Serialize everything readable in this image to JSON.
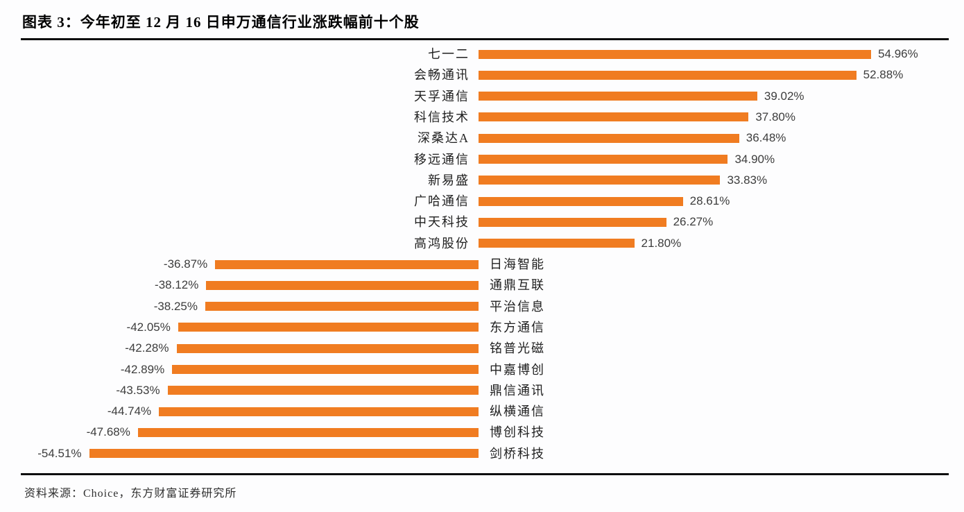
{
  "header": {
    "title": "图表 3：今年初至 12 月 16 日申万通信行业涨跌幅前十个股"
  },
  "footer": {
    "source": "资料来源：Choice，东方财富证券研究所"
  },
  "colors": {
    "bar": "#F07C21",
    "rule": "#0d0d0d",
    "category_label": "#1f1f1f",
    "value_label": "#3d3d3d",
    "background": "#fdfdfe"
  },
  "chart_data": {
    "type": "bar",
    "orientation": "horizontal",
    "title": "今年初至12月16日申万通信行业涨跌幅前十个股",
    "xlabel": "",
    "ylabel": "",
    "xlim": [
      -60,
      60
    ],
    "grid": false,
    "legend": false,
    "unit": "%",
    "bar_color": "#F07C21",
    "categories": [
      "七一二",
      "会畅通讯",
      "天孚通信",
      "科信技术",
      "深桑达A",
      "移远通信",
      "新易盛",
      "广哈通信",
      "中天科技",
      "高鸿股份",
      "日海智能",
      "通鼎互联",
      "平治信息",
      "东方通信",
      "铭普光磁",
      "中嘉博创",
      "鼎信通讯",
      "纵横通信",
      "博创科技",
      "剑桥科技"
    ],
    "values": [
      54.96,
      52.88,
      39.02,
      37.8,
      36.48,
      34.9,
      33.83,
      28.61,
      26.27,
      21.8,
      -36.87,
      -38.12,
      -38.25,
      -42.05,
      -42.28,
      -42.89,
      -43.53,
      -44.74,
      -47.68,
      -54.51
    ],
    "value_labels": [
      "54.96%",
      "52.88%",
      "39.02%",
      "37.80%",
      "36.48%",
      "34.90%",
      "33.83%",
      "28.61%",
      "26.27%",
      "21.80%",
      "-36.87%",
      "-38.12%",
      "-38.25%",
      "-42.05%",
      "-42.28%",
      "-42.89%",
      "-43.53%",
      "-44.74%",
      "-47.68%",
      "-54.51%"
    ]
  }
}
